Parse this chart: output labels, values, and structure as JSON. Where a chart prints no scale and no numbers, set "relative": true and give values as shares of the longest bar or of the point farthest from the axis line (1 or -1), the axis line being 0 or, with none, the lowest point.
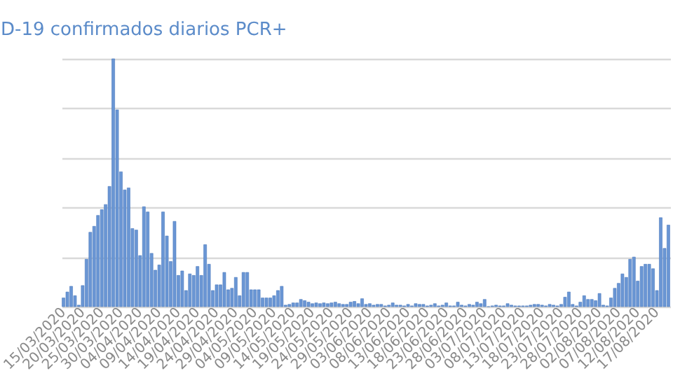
{
  "chart_data": {
    "type": "bar",
    "title": "D-19 confirmados diarios PCR+",
    "relative": true,
    "grid": "y",
    "categories": [
      "15/03/2020",
      null,
      null,
      null,
      null,
      "20/03/2020",
      null,
      null,
      null,
      null,
      "25/03/2020",
      null,
      null,
      null,
      null,
      "30/03/2020",
      null,
      null,
      null,
      null,
      "04/04/2020",
      null,
      null,
      null,
      null,
      "09/04/2020",
      null,
      null,
      null,
      null,
      "14/04/2020",
      null,
      null,
      null,
      null,
      "19/04/2020",
      null,
      null,
      null,
      null,
      "24/04/2020",
      null,
      null,
      null,
      null,
      "29/04/2020",
      null,
      null,
      null,
      null,
      "04/05/2020",
      null,
      null,
      null,
      null,
      "09/05/2020",
      null,
      null,
      null,
      null,
      "14/05/2020",
      null,
      null,
      null,
      null,
      "19/05/2020",
      null,
      null,
      null,
      null,
      "24/05/2020",
      null,
      null,
      null,
      null,
      "29/05/2020",
      null,
      null,
      null,
      null,
      "03/06/2020",
      null,
      null,
      null,
      null,
      "08/06/2020",
      null,
      null,
      null,
      null,
      "13/06/2020",
      null,
      null,
      null,
      null,
      "18/06/2020",
      null,
      null,
      null,
      null,
      "23/06/2020",
      null,
      null,
      null,
      null,
      "28/06/2020",
      null,
      null,
      null,
      null,
      "03/07/2020",
      null,
      null,
      null,
      null,
      "08/07/2020",
      null,
      null,
      null,
      null,
      "13/07/2020",
      null,
      null,
      null,
      null,
      "18/07/2020",
      null,
      null,
      null,
      null,
      "23/07/2020",
      null,
      null,
      null,
      null,
      "28/07/2020",
      null,
      null,
      null,
      null,
      "02/08/2020",
      null,
      null,
      null,
      null,
      "07/08/2020",
      null,
      null,
      null,
      null,
      "12/08/2020",
      null,
      null,
      null,
      null,
      "17/08/2020",
      null,
      null,
      null
    ],
    "series": [
      {
        "color": "#6a96d4",
        "values": [
          0.035,
          0.059,
          0.082,
          0.044,
          0.006,
          0.085,
          0.191,
          0.3,
          0.324,
          0.368,
          0.391,
          0.412,
          0.485,
          1,
          0.794,
          0.544,
          0.471,
          0.479,
          0.315,
          0.309,
          0.206,
          0.403,
          0.382,
          0.215,
          0.147,
          0.168,
          0.382,
          0.285,
          0.182,
          0.344,
          0.126,
          0.144,
          0.065,
          0.132,
          0.126,
          0.162,
          0.126,
          0.25,
          0.171,
          0.065,
          0.088,
          0.088,
          0.138,
          0.068,
          0.074,
          0.118,
          0.044,
          0.138,
          0.138,
          0.068,
          0.068,
          0.068,
          0.035,
          0.035,
          0.035,
          0.044,
          0.065,
          0.082,
          0.006,
          0.009,
          0.015,
          0.015,
          0.029,
          0.024,
          0.018,
          0.012,
          0.015,
          0.012,
          0.015,
          0.012,
          0.015,
          0.018,
          0.012,
          0.009,
          0.009,
          0.018,
          0.021,
          0.012,
          0.032,
          0.009,
          0.012,
          0.006,
          0.009,
          0.009,
          0.003,
          0.006,
          0.015,
          0.006,
          0.006,
          0.003,
          0.009,
          0.003,
          0.012,
          0.009,
          0.009,
          0.003,
          0.006,
          0.012,
          0.003,
          0.006,
          0.015,
          0.003,
          0.003,
          0.018,
          0.006,
          0.003,
          0.009,
          0.006,
          0.018,
          0.012,
          0.029,
          0,
          0.003,
          0.006,
          0.003,
          0.003,
          0.012,
          0.006,
          0.003,
          0.003,
          0.003,
          0.003,
          0.006,
          0.009,
          0.009,
          0.006,
          0.003,
          0.009,
          0.006,
          0.003,
          0.009,
          0.038,
          0.059,
          0.009,
          0.003,
          0.018,
          0.044,
          0.029,
          0.029,
          0.024,
          0.053,
          0.006,
          0.003,
          0.035,
          0.074,
          0.094,
          0.132,
          0.118,
          0.191,
          0.2,
          0.103,
          0.162,
          0.171,
          0.171,
          0.153,
          0.065,
          0.359,
          0.235,
          0.329
        ]
      }
    ]
  }
}
